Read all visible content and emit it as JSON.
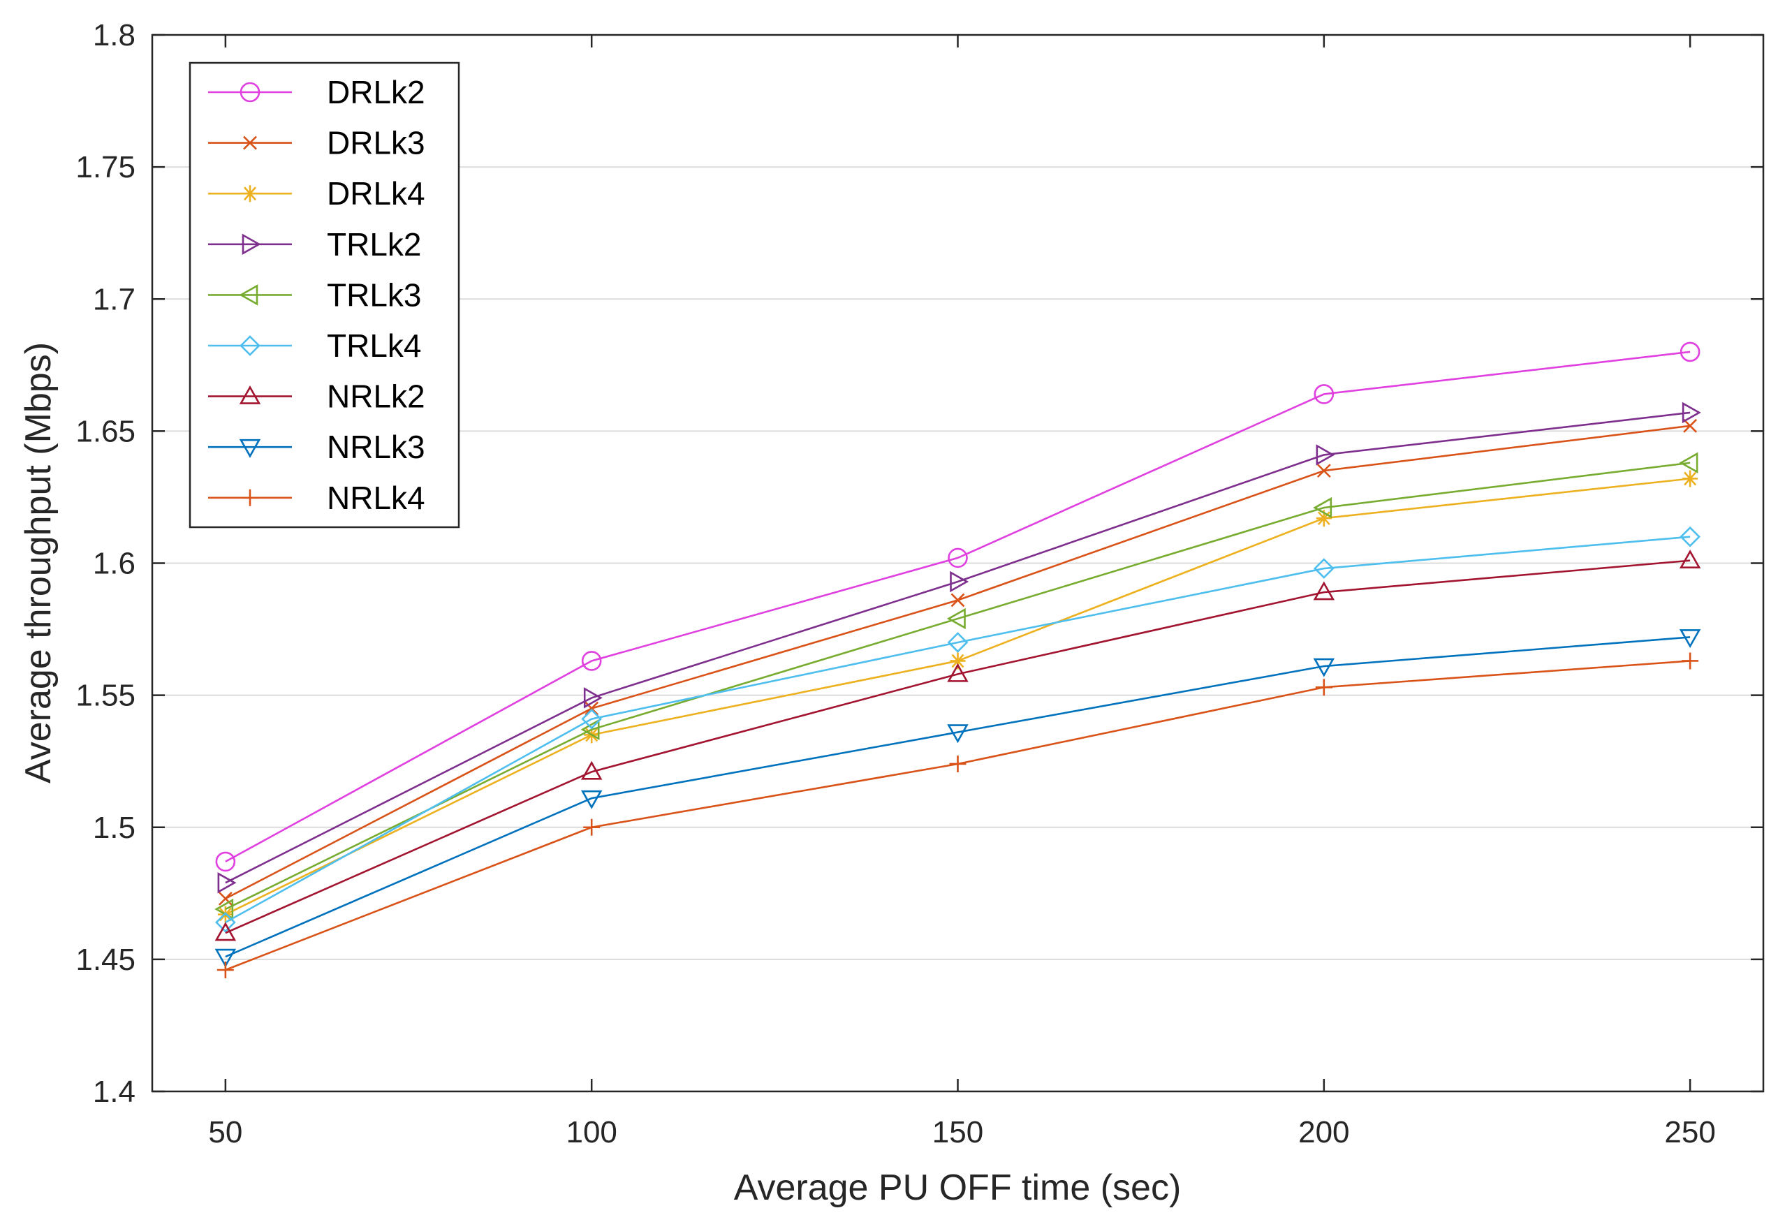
{
  "chart_data": {
    "type": "line",
    "title": "",
    "xlabel": "Average PU OFF time (sec)",
    "ylabel": "Average throughput (Mbps)",
    "xlim": [
      40,
      260
    ],
    "ylim": [
      1.4,
      1.8
    ],
    "grid": "y-only",
    "legend_position": "top-left",
    "x": [
      50,
      100,
      150,
      200,
      250
    ],
    "x_ticks": [
      "50",
      "100",
      "150",
      "200",
      "250"
    ],
    "y_ticks": [
      "1.4",
      "1.45",
      "1.5",
      "1.55",
      "1.6",
      "1.65",
      "1.7",
      "1.75",
      "1.8"
    ],
    "series": [
      {
        "name": "DRLk2",
        "color": "#e040e0",
        "marker": "circle",
        "values": [
          1.487,
          1.563,
          1.602,
          1.664,
          1.68
        ]
      },
      {
        "name": "DRLk3",
        "color": "#d95319",
        "marker": "x",
        "values": [
          1.473,
          1.545,
          1.586,
          1.635,
          1.652
        ]
      },
      {
        "name": "DRLk4",
        "color": "#edb120",
        "marker": "asterisk",
        "values": [
          1.467,
          1.535,
          1.563,
          1.617,
          1.632
        ]
      },
      {
        "name": "TRLk2",
        "color": "#7e2f8e",
        "marker": "triangle-right",
        "values": [
          1.479,
          1.549,
          1.593,
          1.641,
          1.657
        ]
      },
      {
        "name": "TRLk3",
        "color": "#77ac30",
        "marker": "triangle-left",
        "values": [
          1.469,
          1.537,
          1.579,
          1.621,
          1.638
        ]
      },
      {
        "name": "TRLk4",
        "color": "#4dbeee",
        "marker": "diamond",
        "values": [
          1.464,
          1.541,
          1.57,
          1.598,
          1.61
        ]
      },
      {
        "name": "NRLk2",
        "color": "#a2142f",
        "marker": "triangle-up",
        "values": [
          1.46,
          1.521,
          1.558,
          1.589,
          1.601
        ]
      },
      {
        "name": "NRLk3",
        "color": "#0072bd",
        "marker": "triangle-down",
        "values": [
          1.451,
          1.511,
          1.536,
          1.561,
          1.572
        ]
      },
      {
        "name": "NRLk4",
        "color": "#d95319",
        "marker": "plus",
        "values": [
          1.446,
          1.5,
          1.524,
          1.553,
          1.563
        ]
      }
    ]
  }
}
